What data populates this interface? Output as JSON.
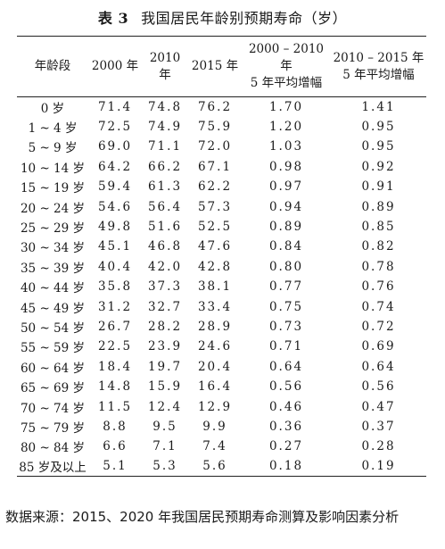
{
  "title": {
    "number": "表 3",
    "text": "我国居民年龄别预期寿命（岁）"
  },
  "table": {
    "headers": [
      [
        "年龄段"
      ],
      [
        "2000 年"
      ],
      [
        "2010 年"
      ],
      [
        "2015 年"
      ],
      [
        "2000 – 2010 年",
        "5 年平均增幅"
      ],
      [
        "2010 – 2015 年",
        "5 年平均增幅"
      ]
    ],
    "rows": [
      [
        "0 岁",
        "71.4",
        "74.8",
        "76.2",
        "1.70",
        "1.41"
      ],
      [
        "1 ~ 4 岁",
        "72.5",
        "74.9",
        "75.9",
        "1.20",
        "0.95"
      ],
      [
        "5 ~ 9 岁",
        "69.0",
        "71.1",
        "72.0",
        "1.03",
        "0.95"
      ],
      [
        "10 ~ 14 岁",
        "64.2",
        "66.2",
        "67.1",
        "0.98",
        "0.92"
      ],
      [
        "15 ~ 19 岁",
        "59.4",
        "61.3",
        "62.2",
        "0.97",
        "0.91"
      ],
      [
        "20 ~ 24 岁",
        "54.6",
        "56.4",
        "57.3",
        "0.94",
        "0.89"
      ],
      [
        "25 ~ 29 岁",
        "49.8",
        "51.6",
        "52.5",
        "0.89",
        "0.85"
      ],
      [
        "30 ~ 34 岁",
        "45.1",
        "46.8",
        "47.6",
        "0.84",
        "0.82"
      ],
      [
        "35 ~ 39 岁",
        "40.4",
        "42.0",
        "42.8",
        "0.80",
        "0.78"
      ],
      [
        "40 ~ 44 岁",
        "35.8",
        "37.3",
        "38.1",
        "0.77",
        "0.76"
      ],
      [
        "45 ~ 49 岁",
        "31.2",
        "32.7",
        "33.4",
        "0.75",
        "0.74"
      ],
      [
        "50 ~ 54 岁",
        "26.7",
        "28.2",
        "28.9",
        "0.73",
        "0.72"
      ],
      [
        "55 ~ 59 岁",
        "22.5",
        "23.9",
        "24.6",
        "0.71",
        "0.69"
      ],
      [
        "60 ~ 64 岁",
        "18.4",
        "19.7",
        "20.4",
        "0.64",
        "0.64"
      ],
      [
        "65 ~ 69 岁",
        "14.8",
        "15.9",
        "16.4",
        "0.56",
        "0.56"
      ],
      [
        "70 ~ 74 岁",
        "11.5",
        "12.4",
        "12.9",
        "0.46",
        "0.47"
      ],
      [
        "75 ~ 79 岁",
        "8.8",
        "9.5",
        "9.9",
        "0.36",
        "0.37"
      ],
      [
        "80 ~ 84 岁",
        "6.6",
        "7.1",
        "7.4",
        "0.27",
        "0.28"
      ],
      [
        "85 岁及以上",
        "5.1",
        "5.3",
        "5.6",
        "0.18",
        "0.19"
      ]
    ]
  },
  "source": "数据来源：2015、2020 年我国居民预期寿命测算及影响因素分析"
}
